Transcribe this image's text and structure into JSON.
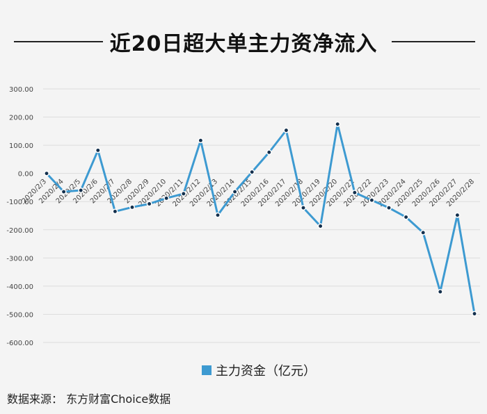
{
  "title": "近20日超大单主力资净流入",
  "source": "数据来源：  东方财富Choice数据",
  "colors": {
    "line": "#3d9ad1",
    "marker_fill": "#14304d",
    "marker_stroke": "#ffffff",
    "grid": "#dcdcdc"
  },
  "chart_data": {
    "type": "line",
    "title": "近20日超大单主力资净流入",
    "xlabel": "",
    "ylabel": "",
    "ylim": [
      -600,
      300
    ],
    "yticks": [
      "300.00",
      "200.00",
      "100.00",
      "0.00",
      "-100.00",
      "-200.00",
      "-300.00",
      "-400.00",
      "-500.00",
      "-600.00"
    ],
    "grid": true,
    "legend_position": "bottom",
    "categories": [
      "2020/2/3",
      "2020/2/4",
      "2020/2/5",
      "2020/2/6",
      "2020/2/7",
      "2020/2/8",
      "2020/2/9",
      "2020/2/10",
      "2020/2/11",
      "2020/2/12",
      "2020/2/13",
      "2020/2/14",
      "2020/2/15",
      "2020/2/16",
      "2020/2/17",
      "2020/2/18",
      "2020/2/19",
      "2020/2/20",
      "2020/2/21",
      "2020/2/22",
      "2020/2/23",
      "2020/2/24",
      "2020/2/25",
      "2020/2/26",
      "2020/2/27",
      "2020/2/28"
    ],
    "series": [
      {
        "name": "主力资金（亿元）",
        "values": [
          0,
          -65,
          -60,
          82,
          -135,
          -120,
          -108,
          -88,
          -72,
          117,
          -148,
          -65,
          5,
          75,
          153,
          -122,
          -187,
          175,
          -68,
          -95,
          -122,
          -155,
          -210,
          -420,
          -148,
          -498
        ]
      }
    ]
  }
}
